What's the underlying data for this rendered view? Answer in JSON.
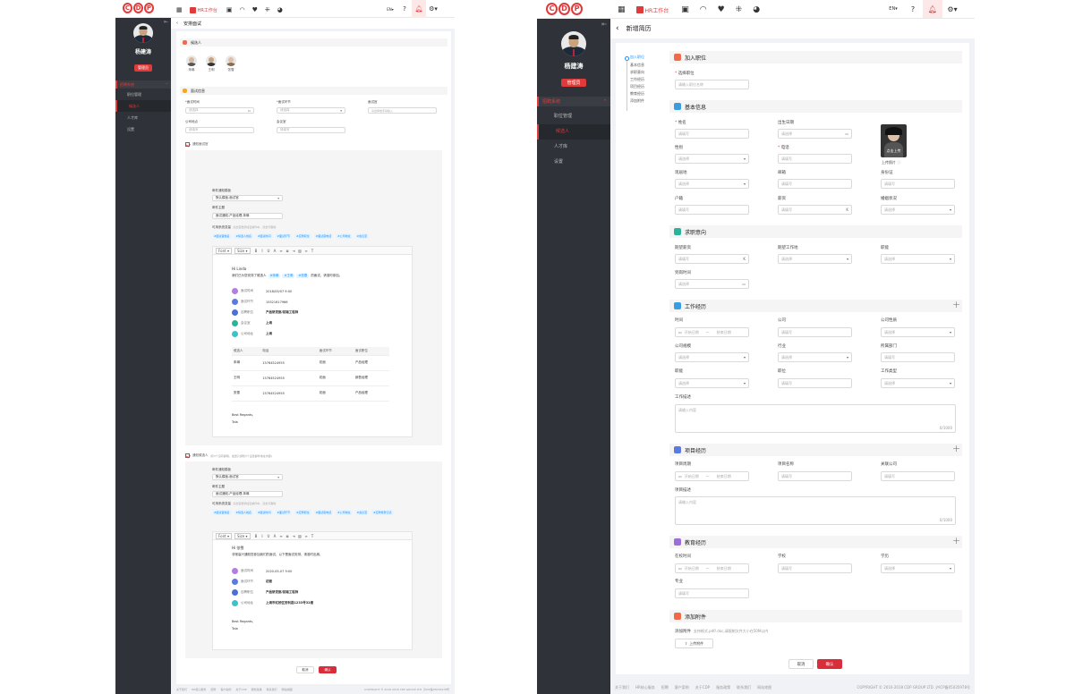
{
  "topbar": {
    "logo": [
      "C",
      "D",
      "P"
    ],
    "hr_workbench": "HR工作台",
    "icons": [
      "calendar-icon",
      "id-card-icon",
      "wifi-icon",
      "heart-icon",
      "apps-icon",
      "pie-icon"
    ],
    "lang": "EN",
    "right_icons": [
      "help-icon",
      "notification-icon",
      "settings-icon"
    ]
  },
  "sidebar": {
    "user_name": "杨建涛",
    "user_role": "管理员",
    "menu_head": "招聘系统",
    "items": [
      "职位管理",
      "候选人",
      "人才库",
      "设置"
    ],
    "active_index": 1
  },
  "left": {
    "page_title": "安排面试",
    "candidates_section": "候选人",
    "candidates": [
      {
        "name": "朱琳"
      },
      {
        "name": "王明"
      },
      {
        "name": "张雪"
      }
    ],
    "interview_section": "面试信息",
    "fields": [
      {
        "label": "面试时间",
        "required": true,
        "placeholder": "请选择"
      },
      {
        "label": "面试环节",
        "required": true,
        "placeholder": "请选择"
      },
      {
        "label": "面试官",
        "required": false,
        "placeholder": "请选择或手动输入"
      },
      {
        "label": "公司地点",
        "required": false,
        "placeholder": "请填写"
      },
      {
        "label": "会议室",
        "required": false,
        "placeholder": "请填写"
      }
    ],
    "notify_interviewer": "通知面试官",
    "mail_block1": {
      "template_label": "邮件通知模板",
      "template_value": "默认模板-面试官",
      "subject_label": "邮件主题",
      "subject_value": "面试通知-产品经理-朱琳",
      "vars_label": "可用系统变量",
      "vars_hint": "点击变量添加至邮件中，双击可删除",
      "vars": [
        "#面试官姓名",
        "#候选人姓名",
        "#面试时间",
        "#面试环节",
        "#应聘职位",
        "#面试官电话",
        "#公司地址",
        "#会议室"
      ],
      "font": "Font",
      "size": "Size",
      "greeting": "Hi Linda",
      "line1_pre": "我们已为您安排了候选人",
      "line1_tags": [
        "#朱琳",
        "#王明",
        "#张雪"
      ],
      "line1_post": "的面试，请准时参加。",
      "info": [
        {
          "label": "面试时间",
          "value": "2018/05/07  9:00"
        },
        {
          "label": "面试环节",
          "value": "15521617966"
        },
        {
          "label": "应聘职位",
          "value": "产品研发部/前端工程师"
        },
        {
          "label": "会议室",
          "value": "上海"
        },
        {
          "label": "公司地址",
          "value": "上海"
        }
      ],
      "table_head": [
        "候选人",
        "电话",
        "面试环节",
        "面试职位"
      ],
      "table_rows": [
        [
          "朱琳",
          "15764524955",
          "初面",
          "产品经理"
        ],
        [
          "王明",
          "15764524955",
          "初面",
          "销售经理"
        ],
        [
          "张雪",
          "15764524955",
          "初面",
          "产品经理"
        ]
      ],
      "sign1": "Best Regards,",
      "sign2": "Tala"
    },
    "notify_candidate": "通知候选人",
    "notify_candidate_hint": "(有3个没有邮箱，发送只通知3个设置邮件地址内容)",
    "mail_block2": {
      "template_label": "邮件通知模板",
      "template_value": "默认模板-面试官",
      "subject_label": "邮件主题",
      "subject_value": "面试通知-产品经理-朱琳",
      "vars_label": "可用系统变量",
      "vars_hint": "点击变量添加至邮件中，双击可删除",
      "vars": [
        "#面试官姓名",
        "#候选人姓名",
        "#面试时间",
        "#面试环节",
        "#应聘职位",
        "#面试官电话",
        "#公司地址",
        "#会议室",
        "#应聘者登记表"
      ],
      "font": "Font",
      "size": "Size",
      "greeting": "Hi 张雪",
      "line1": "非常高兴通知您参加我们的面试，以下是面试安排，请准时出席。",
      "info": [
        {
          "label": "面试时间",
          "value": "2020-05-07  9:00"
        },
        {
          "label": "面试环节",
          "value": "初面"
        },
        {
          "label": "应聘职位",
          "value": "产品研发部/前端工程师"
        },
        {
          "label": "公司地址",
          "value": "上海市虹桥区安利路1233号32楼"
        }
      ],
      "sign1": "Best Regards,",
      "sign2": "Tala"
    },
    "cancel": "取消",
    "confirm": "确认",
    "footer_links": [
      "关于我们",
      "HR核心服务",
      "招聘",
      "客户案例",
      "关于CDP",
      "服务政策",
      "联系我们",
      "网站地图"
    ],
    "copyright": "COPYRIGHT © 2016-2018 CDP GROUP LTD. 沪ICP备05035978号"
  },
  "right": {
    "page_title": "新增简历",
    "anchors": [
      "加入职位",
      "基本信息",
      "求职意向",
      "工作经历",
      "项目经历",
      "教育经历",
      "添加附件"
    ],
    "sections": {
      "join": "加入职位",
      "basic": "基本信息",
      "intent": "求职意向",
      "work": "工作经历",
      "project": "项目经历",
      "edu": "教育经历",
      "attach": "添加附件"
    },
    "join_field": {
      "label": "选择职位",
      "placeholder": "请输入职位名称"
    },
    "basic_fields": {
      "name": {
        "label": "姓名",
        "placeholder": "请填写"
      },
      "birth": {
        "label": "出生日期",
        "placeholder": "请选择"
      },
      "gender": {
        "label": "性别",
        "placeholder": "请选择"
      },
      "phone": {
        "label": "电话",
        "placeholder": "请填写"
      },
      "residence": {
        "label": "现居地",
        "placeholder": "请选择"
      },
      "email": {
        "label": "邮箱",
        "placeholder": "请填写"
      },
      "idcard": {
        "label": "身份证",
        "placeholder": "请填写"
      },
      "hukou": {
        "label": "户籍",
        "placeholder": "请填写"
      },
      "salary": {
        "label": "薪资",
        "placeholder": "请填写",
        "suffix": "K"
      },
      "marital": {
        "label": "婚姻状况",
        "placeholder": "请选择"
      }
    },
    "photo_click": "点击上传",
    "photo_label": "上传照片",
    "intent_fields": {
      "exp_salary": {
        "label": "期望薪资",
        "placeholder": "请填写",
        "suffix": "K"
      },
      "exp_city": {
        "label": "期望工作地",
        "placeholder": "请选择"
      },
      "position": {
        "label": "职能",
        "placeholder": "请选择"
      },
      "arrive": {
        "label": "到岗时间",
        "placeholder": "请选择"
      }
    },
    "work_fields": {
      "time": {
        "label": "时间",
        "start": "开始日期",
        "end": "结束日期",
        "sep": "～"
      },
      "company": {
        "label": "公司",
        "placeholder": "请填写"
      },
      "nature": {
        "label": "公司性质",
        "placeholder": "请选择"
      },
      "scale": {
        "label": "公司规模",
        "placeholder": "请选择"
      },
      "industry": {
        "label": "行业",
        "placeholder": "请选择"
      },
      "dept": {
        "label": "所属部门",
        "placeholder": "请填写"
      },
      "func": {
        "label": "职能",
        "placeholder": "请选择"
      },
      "post": {
        "label": "职位",
        "placeholder": "请填写"
      },
      "worktype": {
        "label": "工作类型",
        "placeholder": "请选择"
      },
      "desc": {
        "label": "工作描述",
        "placeholder": "请输入内容",
        "count": "0/1000"
      }
    },
    "project_fields": {
      "period": {
        "label": "项目周期",
        "start": "开始日期",
        "end": "结束日期",
        "sep": "～"
      },
      "name": {
        "label": "项目名称",
        "placeholder": "请填写"
      },
      "company": {
        "label": "关联公司",
        "placeholder": "请填写"
      },
      "desc": {
        "label": "项目描述",
        "placeholder": "请输入内容",
        "count": "0/1000"
      }
    },
    "edu_fields": {
      "period": {
        "label": "在校时间",
        "start": "开始日期",
        "end": "结束日期",
        "sep": "～"
      },
      "school": {
        "label": "学校",
        "placeholder": "请填写"
      },
      "degree": {
        "label": "学历",
        "placeholder": "请选择"
      },
      "major": {
        "label": "专业",
        "placeholder": "请填写"
      }
    },
    "attach_label": "添加附件",
    "attach_hint": "支持格式.pdf/.doc,请限制文件大小在50M以内",
    "upload_btn": "上传附件",
    "cancel": "取消",
    "confirm": "确认",
    "footer_links": [
      "关于我们",
      "HR核心服务",
      "招聘",
      "客户案例",
      "关于CDP",
      "服务政策",
      "联系我们",
      "网站地图"
    ],
    "copyright": "COPYRIGHT © 2016-2018 CDP GROUP LTD. 沪ICP备05035978号"
  },
  "colors": {
    "brand": "#e03b3b",
    "sidebar": "#2f3339",
    "link": "#1890ff"
  }
}
